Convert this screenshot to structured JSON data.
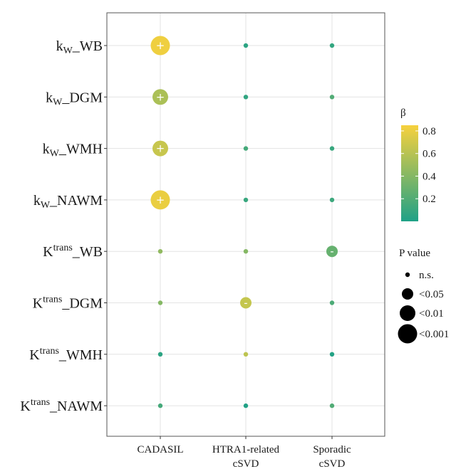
{
  "chart_data": {
    "type": "scatter",
    "title": "",
    "xlabel": "",
    "ylabel": "",
    "x_categories": [
      {
        "lines": [
          "CADASIL"
        ]
      },
      {
        "lines": [
          "HTRA1-related",
          "cSVD"
        ]
      },
      {
        "lines": [
          "Sporadic",
          "cSVD"
        ]
      }
    ],
    "y_categories": [
      {
        "base": "k",
        "sub": "W",
        "suffix": "_WB"
      },
      {
        "base": "k",
        "sub": "W",
        "suffix": "_DGM"
      },
      {
        "base": "k",
        "sub": "W",
        "suffix": "_WMH"
      },
      {
        "base": "k",
        "sub": "W",
        "suffix": "_NAWM"
      },
      {
        "base": "K",
        "sup": "trans",
        "suffix": "_WB"
      },
      {
        "base": "K",
        "sup": "trans",
        "suffix": "_DGM"
      },
      {
        "base": "K",
        "sup": "trans",
        "suffix": "_WMH"
      },
      {
        "base": "K",
        "sup": "trans",
        "suffix": "_NAWM"
      }
    ],
    "grid": true,
    "points": [
      {
        "x": 0,
        "y": 0,
        "beta": 0.82,
        "p": "<0.001",
        "sign": "+"
      },
      {
        "x": 1,
        "y": 0,
        "beta": 0.05,
        "p": "n.s.",
        "sign": ""
      },
      {
        "x": 2,
        "y": 0,
        "beta": 0.08,
        "p": "n.s.",
        "sign": ""
      },
      {
        "x": 0,
        "y": 1,
        "beta": 0.55,
        "p": "<0.01",
        "sign": "+"
      },
      {
        "x": 1,
        "y": 1,
        "beta": 0.07,
        "p": "n.s.",
        "sign": ""
      },
      {
        "x": 2,
        "y": 1,
        "beta": 0.2,
        "p": "n.s.",
        "sign": ""
      },
      {
        "x": 0,
        "y": 2,
        "beta": 0.66,
        "p": "<0.01",
        "sign": "+"
      },
      {
        "x": 1,
        "y": 2,
        "beta": 0.15,
        "p": "n.s.",
        "sign": ""
      },
      {
        "x": 2,
        "y": 2,
        "beta": 0.1,
        "p": "n.s.",
        "sign": ""
      },
      {
        "x": 0,
        "y": 3,
        "beta": 0.8,
        "p": "<0.001",
        "sign": "+"
      },
      {
        "x": 1,
        "y": 3,
        "beta": 0.1,
        "p": "n.s.",
        "sign": ""
      },
      {
        "x": 2,
        "y": 3,
        "beta": 0.12,
        "p": "n.s.",
        "sign": ""
      },
      {
        "x": 0,
        "y": 4,
        "beta": 0.45,
        "p": "n.s.",
        "sign": ""
      },
      {
        "x": 1,
        "y": 4,
        "beta": 0.4,
        "p": "n.s.",
        "sign": ""
      },
      {
        "x": 2,
        "y": 4,
        "beta": 0.28,
        "p": "<0.05",
        "sign": "-"
      },
      {
        "x": 0,
        "y": 5,
        "beta": 0.4,
        "p": "n.s.",
        "sign": ""
      },
      {
        "x": 1,
        "y": 5,
        "beta": 0.65,
        "p": "<0.05",
        "sign": "-"
      },
      {
        "x": 2,
        "y": 5,
        "beta": 0.18,
        "p": "n.s.",
        "sign": ""
      },
      {
        "x": 0,
        "y": 6,
        "beta": 0.05,
        "p": "n.s.",
        "sign": ""
      },
      {
        "x": 1,
        "y": 6,
        "beta": 0.62,
        "p": "n.s.",
        "sign": ""
      },
      {
        "x": 2,
        "y": 6,
        "beta": 0.02,
        "p": "n.s.",
        "sign": ""
      },
      {
        "x": 0,
        "y": 7,
        "beta": 0.15,
        "p": "n.s.",
        "sign": ""
      },
      {
        "x": 1,
        "y": 7,
        "beta": 0.01,
        "p": "n.s.",
        "sign": ""
      },
      {
        "x": 2,
        "y": 7,
        "beta": 0.2,
        "p": "n.s.",
        "sign": ""
      }
    ],
    "color_legend": {
      "title": "β",
      "range": [
        0.0,
        0.85
      ],
      "ticks": [
        0.2,
        0.4,
        0.6,
        0.8
      ],
      "tick_labels": [
        "0.2",
        "0.4",
        "0.6",
        "0.8"
      ],
      "color_low": "#1fa187",
      "color_high": "#f7d13d",
      "placement": "right"
    },
    "size_legend": {
      "title": "P value",
      "entries": [
        "n.s.",
        "<0.05",
        "<0.01",
        "<0.001"
      ],
      "placement": "right"
    }
  }
}
